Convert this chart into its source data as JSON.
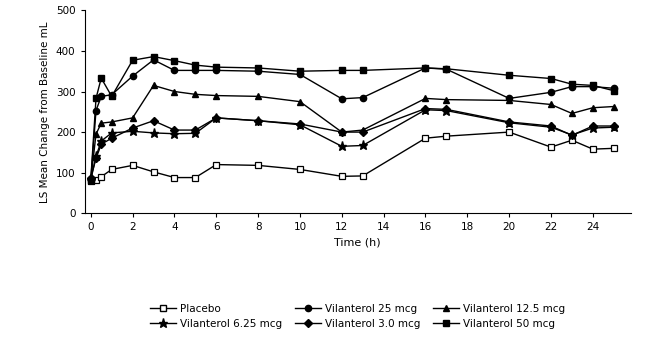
{
  "time": [
    0,
    0.25,
    0.5,
    1,
    2,
    3,
    4,
    5,
    6,
    8,
    10,
    12,
    13,
    16,
    17,
    20,
    22,
    23,
    24,
    25
  ],
  "placebo": [
    80,
    83,
    90,
    108,
    118,
    102,
    88,
    88,
    120,
    118,
    108,
    91,
    92,
    185,
    190,
    200,
    163,
    180,
    158,
    160
  ],
  "vil_3": [
    88,
    135,
    170,
    185,
    210,
    228,
    205,
    205,
    235,
    228,
    220,
    200,
    200,
    258,
    256,
    225,
    215,
    192,
    215,
    215
  ],
  "vil_6p25": [
    82,
    140,
    178,
    198,
    202,
    198,
    196,
    197,
    235,
    228,
    218,
    165,
    167,
    255,
    253,
    223,
    212,
    193,
    210,
    212
  ],
  "vil_12p5": [
    82,
    195,
    222,
    225,
    235,
    315,
    300,
    293,
    290,
    288,
    275,
    200,
    205,
    283,
    280,
    278,
    268,
    246,
    260,
    263
  ],
  "vil_25": [
    82,
    253,
    288,
    292,
    338,
    378,
    352,
    352,
    352,
    350,
    342,
    282,
    285,
    358,
    355,
    283,
    298,
    312,
    312,
    308
  ],
  "vil_50": [
    82,
    283,
    333,
    288,
    377,
    386,
    376,
    365,
    360,
    358,
    350,
    352,
    352,
    358,
    356,
    340,
    332,
    318,
    315,
    302
  ],
  "xlabel": "Time (h)",
  "ylabel": "LS Mean Change from Baseline mL",
  "xlim": [
    -0.3,
    25.8
  ],
  "ylim": [
    0,
    500
  ],
  "xticks": [
    0,
    2,
    4,
    6,
    8,
    10,
    12,
    14,
    16,
    18,
    20,
    22,
    24
  ],
  "yticks": [
    0,
    100,
    200,
    300,
    400,
    500
  ],
  "color": "#000000",
  "figsize": [
    6.5,
    3.44
  ],
  "dpi": 100
}
